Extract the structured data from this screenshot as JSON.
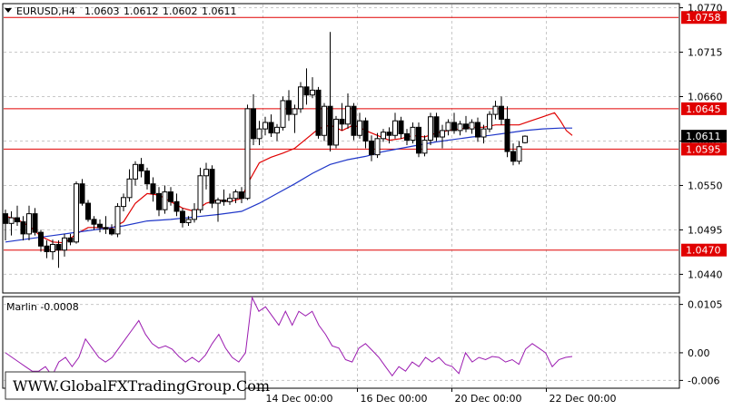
{
  "chart_data": [
    {
      "type": "candlestick",
      "symbol": "EURUSD,H4",
      "ohlc_header": [
        "1.0603",
        "1.0612",
        "1.0602",
        "1.0611"
      ],
      "ylim": [
        1.0418,
        1.0774
      ],
      "price_ticks": [
        "1.0770",
        "1.0715",
        "1.0660",
        "1.0605",
        "1.0550",
        "1.0495",
        "1.0440"
      ],
      "x_ticks": [
        {
          "label": "14 Dec 00:00",
          "bar": 47
        },
        {
          "label": "16 Dec 00:00",
          "bar": 63
        },
        {
          "label": "20 Dec 00:00",
          "bar": 79
        },
        {
          "label": "22 Dec 00:00",
          "bar": 95
        }
      ],
      "levels": [
        {
          "value": 1.0758,
          "label": "1.0758",
          "color": "#e00000"
        },
        {
          "value": 1.0645,
          "label": "1.0645",
          "color": "#e00000"
        },
        {
          "value": 1.0595,
          "label": "1.0595",
          "color": "#e00000"
        },
        {
          "value": 1.047,
          "label": "1.0470",
          "color": "#e00000"
        }
      ],
      "current_price": {
        "value": 1.0611,
        "label": "1.0611"
      },
      "candles": [
        [
          1.0515,
          1.052,
          1.0482,
          1.0503
        ],
        [
          1.0503,
          1.0518,
          1.0488,
          1.051
        ],
        [
          1.051,
          1.0525,
          1.05,
          1.0505
        ],
        [
          1.0505,
          1.0512,
          1.0482,
          1.049
        ],
        [
          1.049,
          1.0525,
          1.0482,
          1.0515
        ],
        [
          1.0515,
          1.0522,
          1.0488,
          1.0492
        ],
        [
          1.0492,
          1.0495,
          1.0468,
          1.0475
        ],
        [
          1.0475,
          1.0482,
          1.046,
          1.0468
        ],
        [
          1.0468,
          1.0483,
          1.0458,
          1.0477
        ],
        [
          1.0477,
          1.0482,
          1.0448,
          1.047
        ],
        [
          1.047,
          1.049,
          1.0462,
          1.0485
        ],
        [
          1.0485,
          1.049,
          1.0476,
          1.048
        ],
        [
          1.048,
          1.0555,
          1.0478,
          1.0552
        ],
        [
          1.0552,
          1.0558,
          1.0525,
          1.0528
        ],
        [
          1.0528,
          1.0532,
          1.0505,
          1.0508
        ],
        [
          1.0508,
          1.0512,
          1.0495,
          1.0502
        ],
        [
          1.0502,
          1.0508,
          1.0492,
          1.0498
        ],
        [
          1.0498,
          1.0512,
          1.049,
          1.0496
        ],
        [
          1.0496,
          1.0502,
          1.0488,
          1.049
        ],
        [
          1.049,
          1.0528,
          1.0486,
          1.0524
        ],
        [
          1.0524,
          1.054,
          1.0518,
          1.0535
        ],
        [
          1.0535,
          1.057,
          1.053,
          1.0558
        ],
        [
          1.0558,
          1.058,
          1.055,
          1.0576
        ],
        [
          1.0576,
          1.0584,
          1.056,
          1.0568
        ],
        [
          1.0568,
          1.0572,
          1.0545,
          1.0552
        ],
        [
          1.0552,
          1.056,
          1.053,
          1.054
        ],
        [
          1.054,
          1.0548,
          1.0512,
          1.052
        ],
        [
          1.052,
          1.055,
          1.0515,
          1.0542
        ],
        [
          1.0542,
          1.0548,
          1.0525,
          1.053
        ],
        [
          1.053,
          1.054,
          1.0512,
          1.0518
        ],
        [
          1.0518,
          1.0522,
          1.0498,
          1.0504
        ],
        [
          1.0504,
          1.0512,
          1.05,
          1.0508
        ],
        [
          1.0508,
          1.0528,
          1.0504,
          1.052
        ],
        [
          1.052,
          1.0572,
          1.0516,
          1.0562
        ],
        [
          1.0562,
          1.0578,
          1.0545,
          1.057
        ],
        [
          1.057,
          1.0575,
          1.0522,
          1.0528
        ],
        [
          1.0528,
          1.0535,
          1.0505,
          1.0532
        ],
        [
          1.0532,
          1.0545,
          1.0525,
          1.053
        ],
        [
          1.053,
          1.054,
          1.0526,
          1.0534
        ],
        [
          1.0534,
          1.0545,
          1.0528,
          1.0542
        ],
        [
          1.0542,
          1.0548,
          1.0528,
          1.0534
        ],
        [
          1.0534,
          1.065,
          1.0532,
          1.0645
        ],
        [
          1.0645,
          1.0663,
          1.06,
          1.0608
        ],
        [
          1.0608,
          1.063,
          1.06,
          1.062
        ],
        [
          1.062,
          1.0635,
          1.0612,
          1.0628
        ],
        [
          1.0628,
          1.0638,
          1.061,
          1.0615
        ],
        [
          1.0615,
          1.0626,
          1.0605,
          1.0622
        ],
        [
          1.0622,
          1.066,
          1.0618,
          1.0655
        ],
        [
          1.0655,
          1.0668,
          1.063,
          1.0638
        ],
        [
          1.0638,
          1.065,
          1.0615,
          1.0645
        ],
        [
          1.0645,
          1.0678,
          1.064,
          1.0672
        ],
        [
          1.0672,
          1.0695,
          1.065,
          1.0662
        ],
        [
          1.0662,
          1.0684,
          1.0658,
          1.0668
        ],
        [
          1.0668,
          1.0672,
          1.0608,
          1.0612
        ],
        [
          1.0612,
          1.0652,
          1.0605,
          1.0648
        ],
        [
          1.0648,
          1.074,
          1.0592,
          1.06
        ],
        [
          1.06,
          1.0636,
          1.0596,
          1.0632
        ],
        [
          1.0632,
          1.0652,
          1.0618,
          1.0626
        ],
        [
          1.0626,
          1.0664,
          1.062,
          1.0648
        ],
        [
          1.0648,
          1.0652,
          1.0606,
          1.0612
        ],
        [
          1.0612,
          1.064,
          1.0608,
          1.063
        ],
        [
          1.063,
          1.0634,
          1.0596,
          1.0605
        ],
        [
          1.0605,
          1.0612,
          1.058,
          1.0588
        ],
        [
          1.0588,
          1.0615,
          1.0584,
          1.0608
        ],
        [
          1.0608,
          1.062,
          1.0604,
          1.0616
        ],
        [
          1.0616,
          1.0622,
          1.0602,
          1.0612
        ],
        [
          1.0612,
          1.064,
          1.0608,
          1.063
        ],
        [
          1.063,
          1.0635,
          1.0608,
          1.0614
        ],
        [
          1.0614,
          1.062,
          1.06,
          1.0606
        ],
        [
          1.0606,
          1.0628,
          1.0602,
          1.0622
        ],
        [
          1.0622,
          1.0628,
          1.0585,
          1.059
        ],
        [
          1.059,
          1.0612,
          1.0586,
          1.0606
        ],
        [
          1.0606,
          1.064,
          1.06,
          1.0635
        ],
        [
          1.0635,
          1.064,
          1.0605,
          1.061
        ],
        [
          1.061,
          1.0625,
          1.0596,
          1.0618
        ],
        [
          1.0618,
          1.0632,
          1.0612,
          1.0628
        ],
        [
          1.0628,
          1.064,
          1.0614,
          1.0618
        ],
        [
          1.0618,
          1.063,
          1.0612,
          1.0626
        ],
        [
          1.0626,
          1.0636,
          1.0616,
          1.062
        ],
        [
          1.062,
          1.0632,
          1.0614,
          1.0628
        ],
        [
          1.0628,
          1.0634,
          1.0604,
          1.061
        ],
        [
          1.061,
          1.0625,
          1.0602,
          1.062
        ],
        [
          1.062,
          1.0642,
          1.0616,
          1.0638
        ],
        [
          1.0638,
          1.0655,
          1.0632,
          1.0648
        ],
        [
          1.0648,
          1.066,
          1.0625,
          1.0632
        ],
        [
          1.0632,
          1.0648,
          1.0585,
          1.0592
        ],
        [
          1.0592,
          1.0602,
          1.0575,
          1.058
        ],
        [
          1.058,
          1.0605,
          1.0576,
          1.0598
        ],
        [
          1.0603,
          1.0612,
          1.0602,
          1.0611
        ]
      ],
      "series": [
        {
          "name": "",
          "color": "#e00000",
          "points": [
            [
              0,
              1.0512
            ],
            [
              2,
              1.0508
            ],
            [
              4,
              1.05
            ],
            [
              6,
              1.0487
            ],
            [
              8,
              1.048
            ],
            [
              10,
              1.0479
            ],
            [
              12,
              1.049
            ],
            [
              14,
              1.0498
            ],
            [
              16,
              1.0498
            ],
            [
              18,
              1.0497
            ],
            [
              20,
              1.0505
            ],
            [
              22,
              1.0528
            ],
            [
              24,
              1.054
            ],
            [
              26,
              1.0538
            ],
            [
              28,
              1.053
            ],
            [
              30,
              1.0522
            ],
            [
              32,
              1.0518
            ],
            [
              34,
              1.0528
            ],
            [
              36,
              1.0532
            ],
            [
              38,
              1.053
            ],
            [
              40,
              1.0534
            ],
            [
              41,
              1.0552
            ],
            [
              43,
              1.0578
            ],
            [
              45,
              1.0585
            ],
            [
              47,
              1.059
            ],
            [
              49,
              1.0596
            ],
            [
              51,
              1.0608
            ],
            [
              53,
              1.062
            ],
            [
              55,
              1.0625
            ],
            [
              57,
              1.0618
            ],
            [
              59,
              1.0625
            ],
            [
              61,
              1.0618
            ],
            [
              63,
              1.0612
            ],
            [
              65,
              1.0606
            ],
            [
              67,
              1.0608
            ],
            [
              69,
              1.0612
            ],
            [
              71,
              1.061
            ],
            [
              73,
              1.0615
            ],
            [
              75,
              1.0618
            ],
            [
              77,
              1.062
            ],
            [
              79,
              1.0622
            ],
            [
              81,
              1.0622
            ],
            [
              83,
              1.0625
            ],
            [
              85,
              1.0625
            ],
            [
              87,
              1.0625
            ],
            [
              89,
              1.063
            ],
            [
              91,
              1.0635
            ],
            [
              93,
              1.064
            ],
            [
              94,
              1.063
            ],
            [
              95,
              1.0618
            ],
            [
              96,
              1.0612
            ]
          ]
        },
        {
          "name": "",
          "color": "#1f36c8",
          "points": [
            [
              0,
              1.048
            ],
            [
              4,
              1.0484
            ],
            [
              8,
              1.0488
            ],
            [
              12,
              1.0492
            ],
            [
              16,
              1.0496
            ],
            [
              20,
              1.05
            ],
            [
              24,
              1.0506
            ],
            [
              28,
              1.0508
            ],
            [
              32,
              1.0511
            ],
            [
              36,
              1.0514
            ],
            [
              40,
              1.0518
            ],
            [
              43,
              1.0528
            ],
            [
              46,
              1.054
            ],
            [
              49,
              1.0552
            ],
            [
              52,
              1.0565
            ],
            [
              55,
              1.0576
            ],
            [
              58,
              1.0582
            ],
            [
              61,
              1.0586
            ],
            [
              64,
              1.0592
            ],
            [
              67,
              1.0596
            ],
            [
              70,
              1.06
            ],
            [
              73,
              1.0604
            ],
            [
              76,
              1.0607
            ],
            [
              79,
              1.061
            ],
            [
              82,
              1.0612
            ],
            [
              85,
              1.0615
            ],
            [
              88,
              1.0618
            ],
            [
              91,
              1.062
            ],
            [
              94,
              1.0621
            ],
            [
              96,
              1.0621
            ]
          ]
        }
      ]
    },
    {
      "type": "line",
      "indicator": "Marlin",
      "label": "Marlin -0.0008",
      "ylim": [
        -0.0075,
        0.012
      ],
      "ticks": [
        "0.0105",
        "0.00",
        "-0.006"
      ],
      "series": [
        {
          "name": "",
          "color": "#9b1bb0",
          "values": [
            0.0,
            -0.001,
            -0.002,
            -0.003,
            -0.004,
            -0.004,
            -0.003,
            -0.005,
            -0.002,
            -0.001,
            -0.003,
            -0.001,
            0.003,
            0.001,
            -0.001,
            -0.002,
            -0.001,
            0.001,
            0.003,
            0.005,
            0.007,
            0.004,
            0.002,
            0.001,
            0.0015,
            0.0008,
            -0.0008,
            -0.002,
            -0.001,
            -0.002,
            -0.0005,
            0.002,
            0.004,
            0.001,
            -0.001,
            -0.002,
            0.0,
            0.012,
            0.009,
            0.01,
            0.008,
            0.006,
            0.009,
            0.006,
            0.009,
            0.008,
            0.009,
            0.006,
            0.004,
            0.0015,
            0.001,
            -0.0015,
            -0.002,
            0.001,
            0.002,
            0.0005,
            -0.001,
            -0.003,
            -0.005,
            -0.003,
            -0.004,
            -0.002,
            -0.003,
            -0.001,
            -0.002,
            -0.001,
            -0.0025,
            -0.003,
            -0.0045,
            0.0,
            -0.002,
            -0.001,
            -0.0015,
            -0.0008,
            -0.001,
            -0.002,
            -0.0015,
            -0.0025,
            0.0008,
            0.002,
            0.001,
            0.0,
            -0.003,
            -0.0015,
            -0.001,
            -0.0008
          ]
        }
      ]
    }
  ],
  "watermark": "WWW.GlobalFXTradingGroup.Com",
  "colors": {
    "level": "#e00000",
    "fast_ma": "#e00000",
    "slow_ma": "#1f36c8",
    "oscillator": "#9b1bb0",
    "grid": "#c8c8c8"
  }
}
